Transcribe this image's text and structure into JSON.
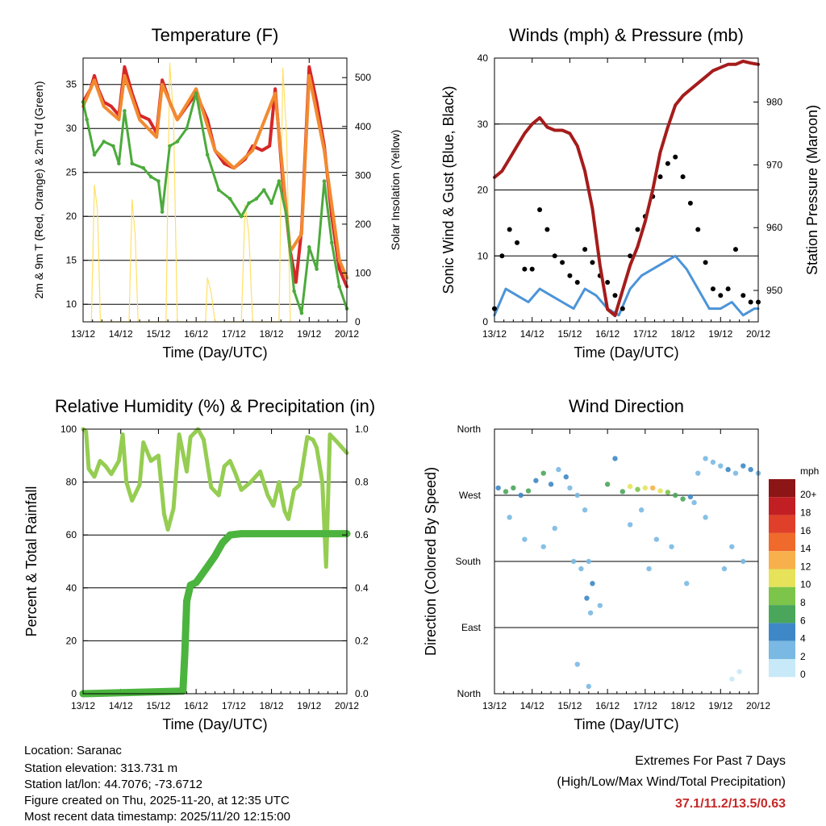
{
  "colors": {
    "temp_red": "#d62728",
    "temp_orange": "#f28a30",
    "dewpoint_green": "#4caa3c",
    "solar_yellow": "#ffe066",
    "wind_blue": "#4c94d8",
    "gust_black": "#000000",
    "pressure_maroon": "#a51c1c",
    "rh_lightgreen": "#95cd52",
    "precip_green": "#4bb43e",
    "extremes_red": "#c62828"
  },
  "x_ticks": [
    "13/12",
    "14/12",
    "15/12",
    "16/12",
    "17/12",
    "18/12",
    "19/12",
    "20/12"
  ],
  "chart_data": [
    {
      "id": "temperature",
      "type": "line",
      "title": "Temperature (F)",
      "xlabel": "Time (Day/UTC)",
      "ylabel": "2m & 9m T (Red, Orange) & 2m Td (Green)",
      "y2label": "Solar Insolation (Yellow)",
      "xlim": [
        0,
        7
      ],
      "ylim": [
        8,
        38
      ],
      "y2lim": [
        0,
        540
      ],
      "yticks": [
        10,
        15,
        20,
        25,
        30,
        35
      ],
      "y2ticks": [
        0,
        100,
        200,
        300,
        400,
        500
      ],
      "series": [
        {
          "name": "2m T",
          "color": "#d62728",
          "x": [
            0,
            0.2,
            0.3,
            0.4,
            0.55,
            0.75,
            0.95,
            1.1,
            1.3,
            1.5,
            1.75,
            1.95,
            2.1,
            2.3,
            2.5,
            2.75,
            3.0,
            3.3,
            3.5,
            3.75,
            4.0,
            4.3,
            4.5,
            4.75,
            4.95,
            5.1,
            5.3,
            5.5,
            5.65,
            5.8,
            6.0,
            6.2,
            6.4,
            6.6,
            6.8,
            7.0
          ],
          "y": [
            33,
            34.5,
            36,
            34.5,
            33,
            32.5,
            31.5,
            37,
            34,
            31.5,
            31,
            29.5,
            35.5,
            33,
            31,
            32.5,
            34,
            31,
            27.5,
            26,
            25.5,
            26.5,
            28,
            27.5,
            28,
            34.5,
            24,
            16,
            12.5,
            18.5,
            37,
            33,
            28,
            20,
            14,
            12
          ]
        },
        {
          "name": "9m T",
          "color": "#f28a30",
          "x": [
            0,
            0.3,
            0.55,
            0.95,
            1.1,
            1.5,
            1.95,
            2.1,
            2.5,
            3.0,
            3.5,
            4.0,
            4.5,
            5.1,
            5.5,
            5.8,
            6.0,
            6.4,
            6.8,
            7.0
          ],
          "y": [
            32.5,
            35.5,
            32.5,
            31,
            36,
            31,
            29,
            35,
            31,
            34.5,
            27.5,
            25.5,
            27.5,
            34,
            16,
            18,
            36,
            27.5,
            15,
            13
          ]
        },
        {
          "name": "2m Td",
          "color": "#4caa3c",
          "x": [
            0,
            0.1,
            0.3,
            0.55,
            0.8,
            0.95,
            1.1,
            1.3,
            1.6,
            1.8,
            2.0,
            2.1,
            2.3,
            2.5,
            2.75,
            3.0,
            3.3,
            3.6,
            3.9,
            4.2,
            4.4,
            4.6,
            4.8,
            5.0,
            5.2,
            5.4,
            5.6,
            5.8,
            6.0,
            6.2,
            6.4,
            6.6,
            6.8,
            7.0
          ],
          "y": [
            33,
            31,
            27,
            28.5,
            28,
            26,
            32,
            26,
            25.5,
            24.5,
            24,
            20.5,
            28,
            28.5,
            30,
            34,
            27,
            23,
            22,
            20,
            21.5,
            22,
            23,
            21.5,
            24,
            20,
            11.5,
            9,
            16.5,
            14,
            24,
            17,
            12,
            9.5
          ]
        },
        {
          "name": "Solar insolation",
          "color": "#ffe066",
          "axis": "y2",
          "x": [
            0.22,
            0.3,
            0.38,
            0.46,
            1.22,
            1.3,
            1.38,
            1.46,
            2.2,
            2.3,
            2.4,
            2.5,
            3.25,
            3.3,
            3.4,
            3.5,
            4.2,
            4.3,
            4.4,
            4.5,
            5.2,
            5.3,
            5.4,
            5.5
          ],
          "y": [
            0,
            280,
            230,
            0,
            0,
            250,
            180,
            0,
            0,
            530,
            420,
            0,
            0,
            90,
            60,
            0,
            0,
            240,
            180,
            0,
            0,
            520,
            380,
            0
          ]
        }
      ]
    },
    {
      "id": "winds",
      "type": "scatter",
      "title": "Winds (mph) & Pressure (mb)",
      "xlabel": "Time (Day/UTC)",
      "ylabel": "Sonic Wind & Gust (Blue, Black)",
      "y2label": "Station Pressure (Maroon)",
      "xlim": [
        0,
        7
      ],
      "ylim": [
        0,
        40
      ],
      "y2lim": [
        945,
        987
      ],
      "yticks": [
        0,
        10,
        20,
        30,
        40
      ],
      "y2ticks": [
        950,
        960,
        970,
        980
      ],
      "series": [
        {
          "name": "Gust",
          "color": "#000000",
          "x": [
            0,
            0.2,
            0.4,
            0.6,
            0.8,
            1.0,
            1.2,
            1.4,
            1.6,
            1.8,
            2.0,
            2.2,
            2.4,
            2.6,
            2.8,
            3.0,
            3.2,
            3.4,
            3.6,
            3.8,
            4.0,
            4.2,
            4.4,
            4.6,
            4.8,
            5.0,
            5.2,
            5.4,
            5.6,
            5.8,
            6.0,
            6.2,
            6.4,
            6.6,
            6.8,
            7.0
          ],
          "y": [
            2,
            10,
            14,
            12,
            8,
            8,
            17,
            14,
            10,
            9,
            7,
            6,
            11,
            9,
            7,
            6,
            4,
            2,
            10,
            14,
            16,
            19,
            22,
            24,
            25,
            22,
            18,
            14,
            9,
            5,
            4,
            5,
            11,
            4,
            3,
            3
          ]
        },
        {
          "name": "Wind",
          "color": "#4c94d8",
          "x": [
            0,
            0.3,
            0.6,
            0.9,
            1.2,
            1.5,
            1.8,
            2.1,
            2.4,
            2.7,
            3.0,
            3.3,
            3.6,
            3.9,
            4.2,
            4.5,
            4.8,
            5.1,
            5.4,
            5.7,
            6.0,
            6.3,
            6.6,
            6.9,
            7.0
          ],
          "y": [
            1,
            5,
            4,
            3,
            5,
            4,
            3,
            2,
            5,
            4,
            2,
            1,
            5,
            7,
            8,
            9,
            10,
            8,
            5,
            2,
            2,
            3,
            1,
            2,
            2
          ]
        },
        {
          "name": "Station pressure",
          "color": "#a51c1c",
          "axis": "y2",
          "x": [
            0,
            0.2,
            0.4,
            0.6,
            0.8,
            1.0,
            1.2,
            1.4,
            1.6,
            1.8,
            2.0,
            2.2,
            2.4,
            2.6,
            2.8,
            3.0,
            3.2,
            3.4,
            3.6,
            3.8,
            4.0,
            4.2,
            4.4,
            4.6,
            4.8,
            5.0,
            5.2,
            5.4,
            5.6,
            5.8,
            6.0,
            6.2,
            6.4,
            6.6,
            6.8,
            7.0
          ],
          "y": [
            968,
            969,
            971,
            973,
            975,
            976.5,
            977.5,
            976,
            975.5,
            975.5,
            975,
            973,
            969,
            963,
            954,
            947,
            946,
            950,
            954,
            957,
            961,
            966,
            972,
            976,
            979.5,
            981,
            982,
            983,
            984,
            985,
            985.5,
            986,
            986,
            986.5,
            986.2,
            986
          ]
        }
      ]
    },
    {
      "id": "humidity",
      "type": "line",
      "title": "Relative Humidity (%) & Precipitation (in)",
      "xlabel": "Time (Day/UTC)",
      "ylabel": "Percent & Total Rainfall",
      "xlim": [
        0,
        7
      ],
      "ylim": [
        0,
        100
      ],
      "y2lim": [
        0,
        1.0
      ],
      "yticks": [
        0,
        20,
        40,
        60,
        80,
        100
      ],
      "y2ticks": [
        0.0,
        0.2,
        0.4,
        0.6,
        0.8,
        1.0
      ],
      "series": [
        {
          "name": "Relative humidity",
          "color": "#95cd52",
          "x": [
            0,
            0.08,
            0.15,
            0.3,
            0.45,
            0.6,
            0.75,
            0.95,
            1.05,
            1.15,
            1.3,
            1.5,
            1.6,
            1.8,
            2.0,
            2.15,
            2.25,
            2.4,
            2.55,
            2.75,
            2.85,
            3.05,
            3.2,
            3.4,
            3.6,
            3.75,
            3.9,
            4.05,
            4.2,
            4.45,
            4.7,
            4.9,
            5.05,
            5.2,
            5.35,
            5.45,
            5.6,
            5.75,
            5.95,
            6.1,
            6.2,
            6.35,
            6.45,
            6.55,
            6.75,
            7.0
          ],
          "y": [
            100,
            99,
            85,
            82,
            88,
            86,
            83,
            88,
            98,
            80,
            73,
            79,
            95,
            88,
            90,
            68,
            62,
            70,
            98,
            84,
            97,
            100,
            96,
            78,
            75,
            86,
            88,
            83,
            77,
            80,
            84,
            75,
            71,
            80,
            69,
            66,
            77,
            79,
            97,
            96,
            93,
            80,
            48,
            98,
            95,
            91
          ]
        },
        {
          "name": "Total precipitation (in)",
          "color": "#4bb43e",
          "x": [
            0,
            2.65,
            2.7,
            2.75,
            2.85,
            3.0,
            3.1,
            3.3,
            3.5,
            3.7,
            3.9,
            4.2,
            5.0,
            6.0,
            7.0
          ],
          "y": [
            0,
            0.01,
            0.15,
            0.35,
            0.41,
            0.42,
            0.44,
            0.48,
            0.52,
            0.57,
            0.6,
            0.605,
            0.605,
            0.605,
            0.605
          ]
        }
      ]
    },
    {
      "id": "wind_direction",
      "type": "scatter",
      "title": "Wind Direction",
      "xlabel": "Time (Day/UTC)",
      "ylabel": "Direction (Colored By Speed)",
      "xlim": [
        0,
        7
      ],
      "ylim": [
        0,
        360
      ],
      "yticklabels": [
        "North",
        "West",
        "South",
        "East",
        "North"
      ],
      "yticks": [
        360,
        270,
        180,
        90,
        0
      ],
      "colorbar": {
        "label": "mph",
        "levels": [
          "0",
          "2",
          "4",
          "6",
          "8",
          "10",
          "12",
          "14",
          "16",
          "18",
          "20+"
        ],
        "colors": [
          "#c7e9f8",
          "#7ab9e3",
          "#3e88c7",
          "#4aa65a",
          "#7dc44a",
          "#e6e35a",
          "#f7b04b",
          "#f06a2c",
          "#e0402a",
          "#c21f24",
          "#8c1515"
        ]
      },
      "points": {
        "x": [
          0.1,
          0.3,
          0.5,
          0.7,
          0.9,
          1.1,
          1.3,
          1.5,
          1.7,
          1.9,
          2.0,
          2.2,
          2.4,
          2.5,
          2.6,
          2.8,
          3.0,
          3.2,
          3.4,
          3.6,
          3.8,
          4.0,
          4.2,
          4.4,
          4.6,
          4.8,
          5.0,
          5.2,
          5.4,
          5.6,
          5.8,
          6.0,
          6.2,
          6.4,
          6.6,
          6.8,
          7.0,
          0.4,
          0.8,
          1.3,
          1.6,
          2.1,
          2.3,
          2.45,
          2.55,
          3.6,
          3.9,
          4.1,
          4.3,
          4.7,
          5.1,
          5.3,
          5.6,
          6.1,
          6.3,
          6.6,
          2.2,
          2.5,
          6.3,
          6.5
        ],
        "y": [
          280,
          275,
          280,
          270,
          276,
          290,
          300,
          285,
          305,
          295,
          280,
          270,
          250,
          180,
          150,
          120,
          285,
          320,
          275,
          282,
          278,
          280,
          280,
          276,
          274,
          270,
          265,
          268,
          300,
          320,
          315,
          310,
          305,
          300,
          310,
          305,
          300,
          240,
          210,
          200,
          225,
          180,
          170,
          130,
          110,
          230,
          250,
          170,
          210,
          200,
          150,
          260,
          240,
          170,
          200,
          180,
          40,
          10,
          20,
          30
        ],
        "speed": [
          3,
          5,
          6,
          4,
          6,
          4,
          5,
          3,
          2,
          4,
          2,
          2,
          1,
          2,
          3,
          1,
          5,
          4,
          6,
          9,
          8,
          10,
          11,
          9,
          7,
          6,
          6,
          4,
          2,
          1,
          2,
          2,
          3,
          2,
          4,
          3,
          2,
          1,
          1,
          2,
          1,
          1,
          2,
          3,
          1,
          2,
          1,
          2,
          1,
          1,
          2,
          2,
          1,
          1,
          2,
          1,
          1,
          1,
          0,
          0
        ]
      }
    }
  ],
  "footer": {
    "location": "Location: Saranac",
    "elevation": "Station elevation: 313.731 m",
    "latlon": "Station lat/lon: 44.7076; -73.6712",
    "created": "Figure created on Thu, 2025-11-20, at 12:35 UTC",
    "recent": "Most recent data timestamp: 2025/11/20 12:15:00"
  },
  "extremes": {
    "line1": "Extremes For Past 7 Days",
    "line2": "(High/Low/Max Wind/Total Precipitation)",
    "values": "37.1/11.2/13.5/0.63"
  }
}
